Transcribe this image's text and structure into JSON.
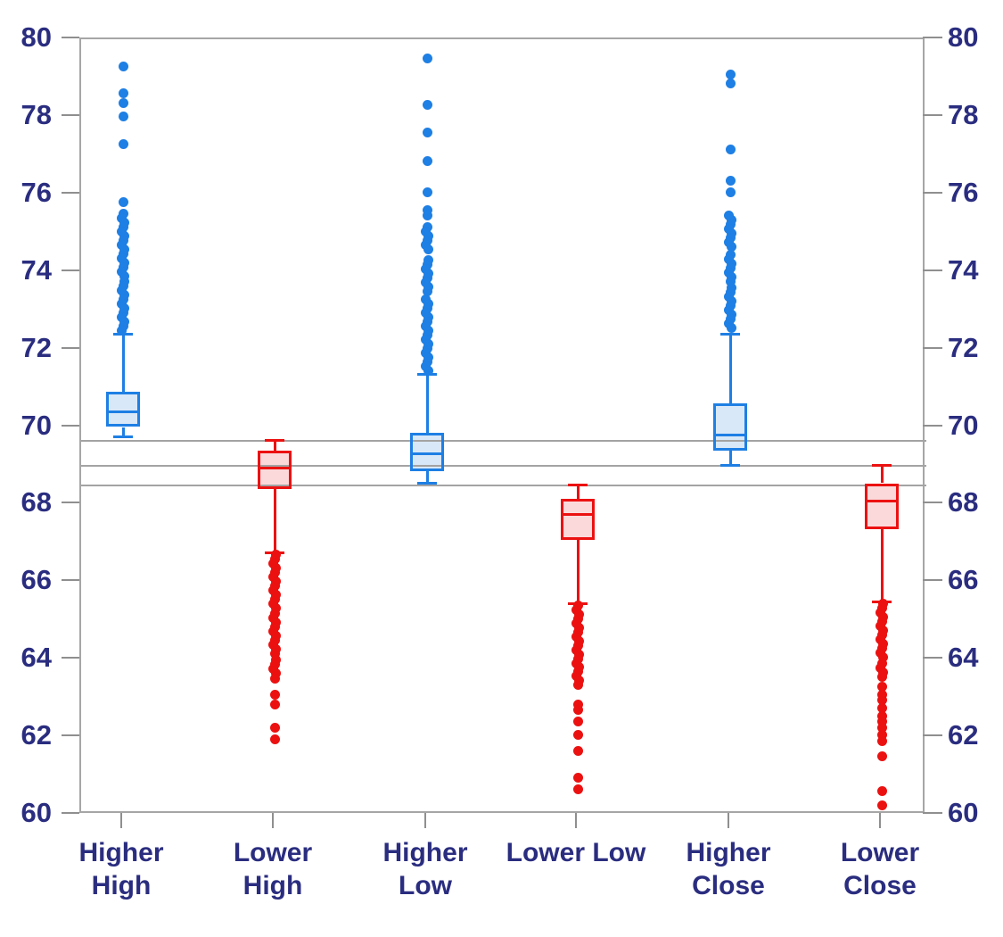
{
  "chart_data": {
    "type": "boxplot",
    "title": "",
    "xlabel": "",
    "ylabel": "",
    "ylim": [
      60,
      80
    ],
    "yticks": [
      80,
      78,
      76,
      74,
      72,
      70,
      68,
      66,
      64,
      62,
      60
    ],
    "y_axis_sides": [
      "left",
      "right"
    ],
    "grid": "off",
    "legend": "none",
    "reference_lines": [
      69.65,
      69.0,
      68.5
    ],
    "colors": {
      "higher": "#1e7fe4",
      "higher_fill": "#d9e8f8",
      "lower": "#ec1111",
      "lower_fill": "#fbd9db",
      "axis_text": "#2a2d7f",
      "axis_line": "#a6a6a6",
      "tick_line": "#8f8f8f",
      "reference_line": "#a3a3a3",
      "background": "#ffffff"
    },
    "series": [
      {
        "name": "Higher High",
        "label_lines": [
          "Higher",
          "High"
        ],
        "group": "higher",
        "whisker_low": 69.75,
        "q1": 70.0,
        "median": 70.4,
        "q3": 70.9,
        "whisker_high": 72.4,
        "outlier_runs": [
          [
            72.45,
            73.75
          ],
          [
            73.85,
            75.5
          ]
        ],
        "outliers": [
          75.8,
          77.3,
          78.0,
          78.35,
          78.6,
          79.3
        ]
      },
      {
        "name": "Lower High",
        "label_lines": [
          "Lower",
          "High"
        ],
        "group": "lower",
        "whisker_low": 66.75,
        "q1": 68.4,
        "median": 68.95,
        "q3": 69.4,
        "whisker_high": 69.65,
        "outlier_runs": [
          [
            65.3,
            66.7
          ],
          [
            64.1,
            65.2
          ],
          [
            63.6,
            64.0
          ]
        ],
        "outliers": [
          63.5,
          63.1,
          62.85,
          62.25,
          61.95
        ]
      },
      {
        "name": "Higher Low",
        "label_lines": [
          "Higher",
          "Low"
        ],
        "group": "higher",
        "whisker_low": 68.55,
        "q1": 68.87,
        "median": 69.3,
        "q3": 69.85,
        "whisker_high": 71.35,
        "outlier_runs": [
          [
            71.4,
            73.3
          ],
          [
            73.45,
            74.3
          ],
          [
            74.5,
            75.15
          ]
        ],
        "outliers": [
          75.45,
          75.6,
          76.05,
          76.85,
          77.6,
          78.3,
          79.5
        ]
      },
      {
        "name": "Lower Low",
        "label_lines": [
          "Lower Low"
        ],
        "group": "lower",
        "whisker_low": 65.45,
        "q1": 67.08,
        "median": 67.75,
        "q3": 68.15,
        "whisker_high": 68.5,
        "outlier_runs": [
          [
            63.9,
            65.4
          ],
          [
            63.3,
            63.8
          ]
        ],
        "outliers": [
          62.85,
          62.7,
          62.4,
          62.05,
          61.65,
          60.95,
          60.65
        ]
      },
      {
        "name": "Higher Close",
        "label_lines": [
          "Higher",
          "Close"
        ],
        "group": "higher",
        "whisker_low": 69.0,
        "q1": 69.38,
        "median": 69.8,
        "q3": 70.6,
        "whisker_high": 72.4,
        "outlier_runs": [
          [
            72.45,
            73.6
          ],
          [
            73.75,
            74.45
          ],
          [
            74.55,
            75.45
          ]
        ],
        "outliers": [
          76.05,
          76.35,
          77.15,
          78.85,
          79.1
        ]
      },
      {
        "name": "Lower Close",
        "label_lines": [
          "Lower",
          "Close"
        ],
        "group": "lower",
        "whisker_low": 65.5,
        "q1": 67.36,
        "median": 68.1,
        "q3": 68.55,
        "whisker_high": 69.0,
        "outlier_runs": [
          [
            64.0,
            65.45
          ],
          [
            63.55,
            63.9
          ]
        ],
        "outliers": [
          63.3,
          63.1,
          62.95,
          62.75,
          62.55,
          62.4,
          62.25,
          62.05,
          61.9,
          61.5,
          60.6,
          60.25
        ]
      }
    ]
  }
}
